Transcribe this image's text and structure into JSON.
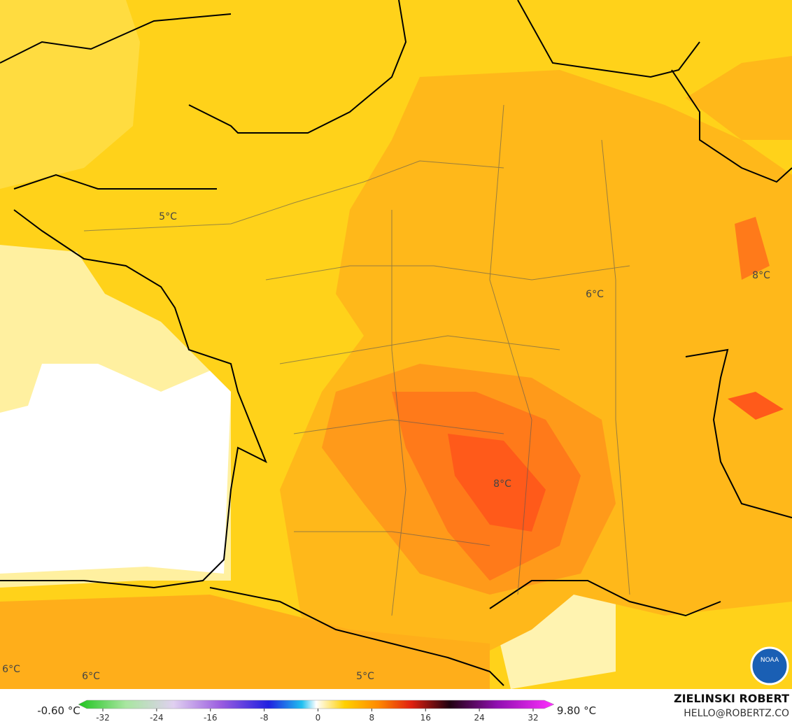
{
  "map": {
    "labels": [
      "5°C",
      "6°C",
      "8°C",
      "8°C",
      "6°C",
      "6°C",
      "5°C"
    ]
  },
  "legend": {
    "min": "-0.60 °C",
    "max": "9.80 °C",
    "ticks": [
      -32,
      -24,
      -16,
      -8,
      0,
      8,
      16,
      24,
      32
    ]
  },
  "credits": {
    "author": "ZIELINSKI ROBERT",
    "email": "HELLO@ROBERTZ.CO"
  },
  "logo": "NOAA"
}
